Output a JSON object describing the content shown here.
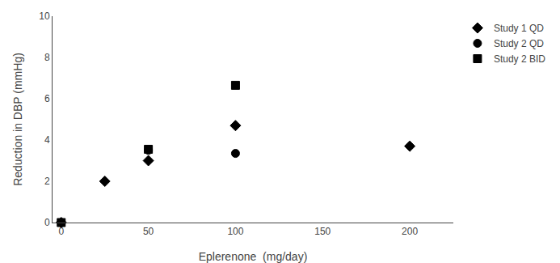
{
  "chart_data": {
    "type": "scatter",
    "xlabel": "Eplerenone  (mg/day)",
    "ylabel": "Reduction in DBP (mmHg)",
    "series": [
      {
        "name": "Study 1 QD",
        "color": "#000000",
        "marker": "diamond",
        "x": [
          0,
          25,
          50,
          100,
          200
        ],
        "values": [
          0,
          2.0,
          3.0,
          4.7,
          3.7
        ]
      },
      {
        "name": "Study 2 QD",
        "color": "#000000",
        "marker": "circle",
        "x": [
          0,
          50,
          100
        ],
        "values": [
          0,
          3.5,
          3.35
        ]
      },
      {
        "name": "Study 2 BID",
        "color": "#000000",
        "marker": "square",
        "x": [
          0,
          50,
          100
        ],
        "values": [
          0,
          3.55,
          6.65
        ]
      }
    ],
    "xlim": [
      -5,
      225
    ],
    "xticks": [
      0,
      50,
      100,
      150,
      200
    ],
    "ylim": [
      0,
      10
    ],
    "yticks": [
      0,
      2,
      4,
      6,
      8,
      10
    ],
    "grid": false,
    "legend": "right"
  }
}
